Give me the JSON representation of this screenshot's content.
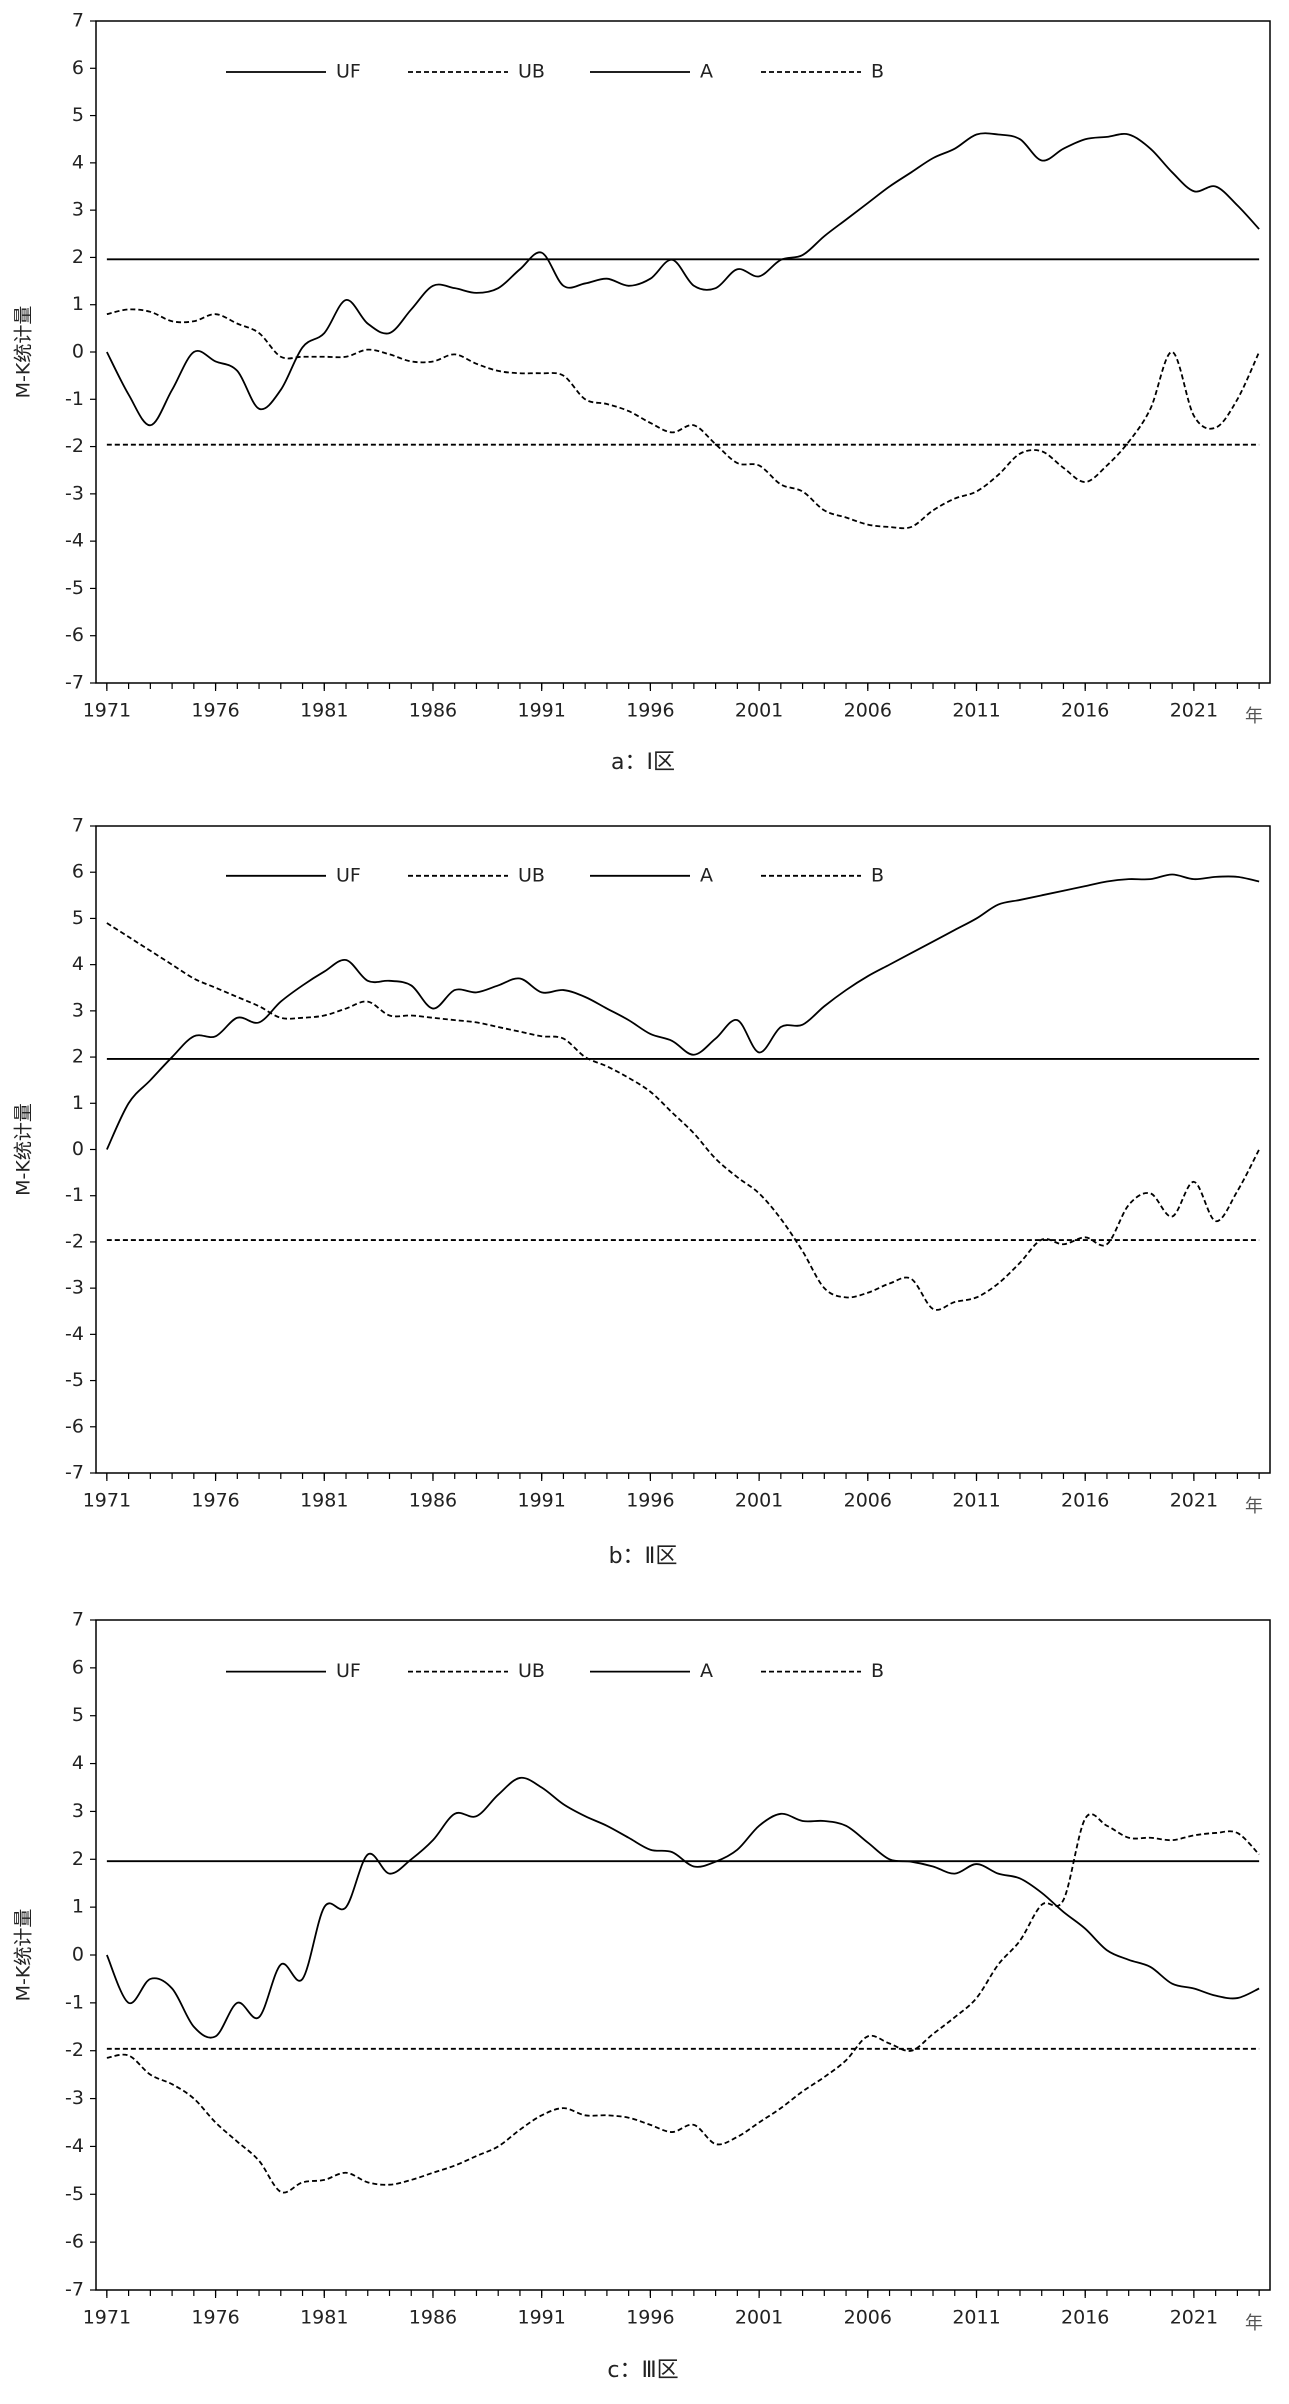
{
  "chart_data": [
    {
      "type": "line",
      "caption": "a：Ⅰ区",
      "y_label": "M-K统计量",
      "x_label": "年",
      "x": [
        1971,
        1972,
        1973,
        1974,
        1975,
        1976,
        1977,
        1978,
        1979,
        1980,
        1981,
        1982,
        1983,
        1984,
        1985,
        1986,
        1987,
        1988,
        1989,
        1990,
        1991,
        1992,
        1993,
        1994,
        1995,
        1996,
        1997,
        1998,
        1999,
        2000,
        2001,
        2002,
        2003,
        2004,
        2005,
        2006,
        2007,
        2008,
        2009,
        2010,
        2011,
        2012,
        2013,
        2014,
        2015,
        2016,
        2017,
        2018,
        2019,
        2020,
        2021,
        2022,
        2023,
        2024
      ],
      "xlim": [
        1970.5,
        2024.5
      ],
      "xticks": [
        1971,
        1976,
        1981,
        1986,
        1991,
        1996,
        2001,
        2006,
        2011,
        2016,
        2021
      ],
      "ylim": [
        -7,
        7
      ],
      "yticks": [
        -7,
        -6,
        -5,
        -4,
        -3,
        -2,
        -1,
        0,
        1,
        2,
        3,
        4,
        5,
        6,
        7
      ],
      "series": [
        {
          "name": "UF",
          "color": "#000000",
          "style": "solid",
          "values": [
            0,
            -0.9,
            -1.55,
            -0.8,
            0,
            -0.2,
            -0.4,
            -1.2,
            -0.8,
            0.1,
            0.4,
            1.1,
            0.6,
            0.4,
            0.9,
            1.4,
            1.35,
            1.25,
            1.35,
            1.75,
            2.1,
            1.4,
            1.45,
            1.55,
            1.4,
            1.55,
            1.95,
            1.4,
            1.35,
            1.75,
            1.6,
            1.95,
            2.05,
            2.45,
            2.8,
            3.15,
            3.5,
            3.8,
            4.1,
            4.3,
            4.6,
            4.6,
            4.5,
            4.05,
            4.3,
            4.5,
            4.55,
            4.6,
            4.3,
            3.8,
            3.4,
            3.5,
            3.1,
            2.6
          ]
        },
        {
          "name": "UB",
          "color": "#000000",
          "style": "dashed",
          "values": [
            0.8,
            0.9,
            0.85,
            0.65,
            0.65,
            0.8,
            0.6,
            0.4,
            -0.1,
            -0.1,
            -0.1,
            -0.1,
            0.05,
            -0.05,
            -0.2,
            -0.2,
            -0.05,
            -0.25,
            -0.4,
            -0.45,
            -0.45,
            -0.5,
            -1.0,
            -1.1,
            -1.25,
            -1.5,
            -1.7,
            -1.55,
            -1.95,
            -2.35,
            -2.4,
            -2.8,
            -2.95,
            -3.35,
            -3.5,
            -3.65,
            -3.7,
            -3.7,
            -3.35,
            -3.1,
            -2.95,
            -2.6,
            -2.15,
            -2.1,
            -2.45,
            -2.75,
            -2.4,
            -1.9,
            -1.2,
            0.0,
            -1.35,
            -1.6,
            -1.0,
            0.0
          ]
        },
        {
          "name": "A",
          "color": "#000000",
          "style": "solid",
          "values": [
            1.96,
            1.96,
            1.96,
            1.96,
            1.96,
            1.96,
            1.96,
            1.96,
            1.96,
            1.96,
            1.96,
            1.96,
            1.96,
            1.96,
            1.96,
            1.96,
            1.96,
            1.96,
            1.96,
            1.96,
            1.96,
            1.96,
            1.96,
            1.96,
            1.96,
            1.96,
            1.96,
            1.96,
            1.96,
            1.96,
            1.96,
            1.96,
            1.96,
            1.96,
            1.96,
            1.96,
            1.96,
            1.96,
            1.96,
            1.96,
            1.96,
            1.96,
            1.96,
            1.96,
            1.96,
            1.96,
            1.96,
            1.96,
            1.96,
            1.96,
            1.96,
            1.96,
            1.96,
            1.96
          ]
        },
        {
          "name": "B",
          "color": "#000000",
          "style": "dashed",
          "values": [
            -1.96,
            -1.96,
            -1.96,
            -1.96,
            -1.96,
            -1.96,
            -1.96,
            -1.96,
            -1.96,
            -1.96,
            -1.96,
            -1.96,
            -1.96,
            -1.96,
            -1.96,
            -1.96,
            -1.96,
            -1.96,
            -1.96,
            -1.96,
            -1.96,
            -1.96,
            -1.96,
            -1.96,
            -1.96,
            -1.96,
            -1.96,
            -1.96,
            -1.96,
            -1.96,
            -1.96,
            -1.96,
            -1.96,
            -1.96,
            -1.96,
            -1.96,
            -1.96,
            -1.96,
            -1.96,
            -1.96,
            -1.96,
            -1.96,
            -1.96,
            -1.96,
            -1.96,
            -1.96,
            -1.96,
            -1.96,
            -1.96,
            -1.96,
            -1.96,
            -1.96,
            -1.96,
            -1.96
          ]
        }
      ]
    },
    {
      "type": "line",
      "caption": "b：Ⅱ区",
      "y_label": "M-K统计量",
      "x_label": "年",
      "x": [
        1971,
        1972,
        1973,
        1974,
        1975,
        1976,
        1977,
        1978,
        1979,
        1980,
        1981,
        1982,
        1983,
        1984,
        1985,
        1986,
        1987,
        1988,
        1989,
        1990,
        1991,
        1992,
        1993,
        1994,
        1995,
        1996,
        1997,
        1998,
        1999,
        2000,
        2001,
        2002,
        2003,
        2004,
        2005,
        2006,
        2007,
        2008,
        2009,
        2010,
        2011,
        2012,
        2013,
        2014,
        2015,
        2016,
        2017,
        2018,
        2019,
        2020,
        2021,
        2022,
        2023,
        2024
      ],
      "xlim": [
        1970.5,
        2024.5
      ],
      "xticks": [
        1971,
        1976,
        1981,
        1986,
        1991,
        1996,
        2001,
        2006,
        2011,
        2016,
        2021
      ],
      "ylim": [
        -7,
        7
      ],
      "yticks": [
        -7,
        -6,
        -5,
        -4,
        -3,
        -2,
        -1,
        0,
        1,
        2,
        3,
        4,
        5,
        6,
        7
      ],
      "series": [
        {
          "name": "UF",
          "color": "#000000",
          "style": "solid",
          "values": [
            0,
            1.0,
            1.5,
            2.0,
            2.45,
            2.45,
            2.85,
            2.75,
            3.2,
            3.55,
            3.85,
            4.1,
            3.65,
            3.65,
            3.55,
            3.05,
            3.45,
            3.4,
            3.55,
            3.7,
            3.4,
            3.45,
            3.3,
            3.05,
            2.8,
            2.5,
            2.35,
            2.05,
            2.4,
            2.8,
            2.1,
            2.65,
            2.7,
            3.1,
            3.45,
            3.75,
            4.0,
            4.25,
            4.5,
            4.75,
            5.0,
            5.3,
            5.4,
            5.5,
            5.6,
            5.7,
            5.8,
            5.85,
            5.85,
            5.95,
            5.85,
            5.9,
            5.9,
            5.8
          ]
        },
        {
          "name": "UB",
          "color": "#000000",
          "style": "dashed",
          "values": [
            4.9,
            4.6,
            4.3,
            4.0,
            3.7,
            3.5,
            3.3,
            3.1,
            2.85,
            2.85,
            2.9,
            3.05,
            3.2,
            2.9,
            2.9,
            2.85,
            2.8,
            2.75,
            2.65,
            2.55,
            2.45,
            2.4,
            2.0,
            1.8,
            1.55,
            1.25,
            0.8,
            0.35,
            -0.2,
            -0.6,
            -0.95,
            -1.5,
            -2.2,
            -3.0,
            -3.2,
            -3.1,
            -2.9,
            -2.8,
            -3.45,
            -3.3,
            -3.2,
            -2.9,
            -2.45,
            -1.95,
            -2.05,
            -1.9,
            -2.05,
            -1.2,
            -0.95,
            -1.45,
            -0.7,
            -1.55,
            -0.9,
            0.0
          ]
        },
        {
          "name": "A",
          "color": "#000000",
          "style": "solid",
          "values": [
            1.96,
            1.96,
            1.96,
            1.96,
            1.96,
            1.96,
            1.96,
            1.96,
            1.96,
            1.96,
            1.96,
            1.96,
            1.96,
            1.96,
            1.96,
            1.96,
            1.96,
            1.96,
            1.96,
            1.96,
            1.96,
            1.96,
            1.96,
            1.96,
            1.96,
            1.96,
            1.96,
            1.96,
            1.96,
            1.96,
            1.96,
            1.96,
            1.96,
            1.96,
            1.96,
            1.96,
            1.96,
            1.96,
            1.96,
            1.96,
            1.96,
            1.96,
            1.96,
            1.96,
            1.96,
            1.96,
            1.96,
            1.96,
            1.96,
            1.96,
            1.96,
            1.96,
            1.96,
            1.96
          ]
        },
        {
          "name": "B",
          "color": "#000000",
          "style": "dashed",
          "values": [
            -1.96,
            -1.96,
            -1.96,
            -1.96,
            -1.96,
            -1.96,
            -1.96,
            -1.96,
            -1.96,
            -1.96,
            -1.96,
            -1.96,
            -1.96,
            -1.96,
            -1.96,
            -1.96,
            -1.96,
            -1.96,
            -1.96,
            -1.96,
            -1.96,
            -1.96,
            -1.96,
            -1.96,
            -1.96,
            -1.96,
            -1.96,
            -1.96,
            -1.96,
            -1.96,
            -1.96,
            -1.96,
            -1.96,
            -1.96,
            -1.96,
            -1.96,
            -1.96,
            -1.96,
            -1.96,
            -1.96,
            -1.96,
            -1.96,
            -1.96,
            -1.96,
            -1.96,
            -1.96,
            -1.96,
            -1.96,
            -1.96,
            -1.96,
            -1.96,
            -1.96,
            -1.96,
            -1.96
          ]
        }
      ]
    },
    {
      "type": "line",
      "caption": "c：Ⅲ区",
      "y_label": "M-K统计量",
      "x_label": "年",
      "x": [
        1971,
        1972,
        1973,
        1974,
        1975,
        1976,
        1977,
        1978,
        1979,
        1980,
        1981,
        1982,
        1983,
        1984,
        1985,
        1986,
        1987,
        1988,
        1989,
        1990,
        1991,
        1992,
        1993,
        1994,
        1995,
        1996,
        1997,
        1998,
        1999,
        2000,
        2001,
        2002,
        2003,
        2004,
        2005,
        2006,
        2007,
        2008,
        2009,
        2010,
        2011,
        2012,
        2013,
        2014,
        2015,
        2016,
        2017,
        2018,
        2019,
        2020,
        2021,
        2022,
        2023,
        2024
      ],
      "xlim": [
        1970.5,
        2024.5
      ],
      "xticks": [
        1971,
        1976,
        1981,
        1986,
        1991,
        1996,
        2001,
        2006,
        2011,
        2016,
        2021
      ],
      "ylim": [
        -7,
        7
      ],
      "yticks": [
        -7,
        -6,
        -5,
        -4,
        -3,
        -2,
        -1,
        0,
        1,
        2,
        3,
        4,
        5,
        6,
        7
      ],
      "series": [
        {
          "name": "UF",
          "color": "#000000",
          "style": "solid",
          "values": [
            0,
            -1.0,
            -0.5,
            -0.7,
            -1.5,
            -1.7,
            -1.0,
            -1.3,
            -0.2,
            -0.5,
            1.0,
            1.0,
            2.1,
            1.7,
            2.0,
            2.4,
            2.95,
            2.9,
            3.35,
            3.7,
            3.5,
            3.15,
            2.9,
            2.7,
            2.45,
            2.2,
            2.15,
            1.85,
            1.95,
            2.2,
            2.7,
            2.95,
            2.8,
            2.8,
            2.7,
            2.35,
            2.0,
            1.95,
            1.85,
            1.7,
            1.9,
            1.7,
            1.6,
            1.3,
            0.9,
            0.55,
            0.1,
            -0.1,
            -0.25,
            -0.6,
            -0.7,
            -0.85,
            -0.9,
            -0.7
          ]
        },
        {
          "name": "UB",
          "color": "#000000",
          "style": "dashed",
          "values": [
            -2.15,
            -2.1,
            -2.5,
            -2.7,
            -3.0,
            -3.5,
            -3.9,
            -4.3,
            -4.95,
            -4.75,
            -4.7,
            -4.55,
            -4.75,
            -4.8,
            -4.7,
            -4.55,
            -4.4,
            -4.2,
            -4.0,
            -3.65,
            -3.35,
            -3.2,
            -3.35,
            -3.35,
            -3.4,
            -3.55,
            -3.7,
            -3.55,
            -3.95,
            -3.8,
            -3.5,
            -3.2,
            -2.85,
            -2.55,
            -2.2,
            -1.7,
            -1.85,
            -2.0,
            -1.65,
            -1.3,
            -0.9,
            -0.2,
            0.3,
            1.05,
            1.15,
            2.85,
            2.7,
            2.45,
            2.45,
            2.4,
            2.5,
            2.55,
            2.55,
            2.1
          ]
        },
        {
          "name": "A",
          "color": "#000000",
          "style": "solid",
          "values": [
            1.96,
            1.96,
            1.96,
            1.96,
            1.96,
            1.96,
            1.96,
            1.96,
            1.96,
            1.96,
            1.96,
            1.96,
            1.96,
            1.96,
            1.96,
            1.96,
            1.96,
            1.96,
            1.96,
            1.96,
            1.96,
            1.96,
            1.96,
            1.96,
            1.96,
            1.96,
            1.96,
            1.96,
            1.96,
            1.96,
            1.96,
            1.96,
            1.96,
            1.96,
            1.96,
            1.96,
            1.96,
            1.96,
            1.96,
            1.96,
            1.96,
            1.96,
            1.96,
            1.96,
            1.96,
            1.96,
            1.96,
            1.96,
            1.96,
            1.96,
            1.96,
            1.96,
            1.96,
            1.96
          ]
        },
        {
          "name": "B",
          "color": "#000000",
          "style": "dashed",
          "values": [
            -1.96,
            -1.96,
            -1.96,
            -1.96,
            -1.96,
            -1.96,
            -1.96,
            -1.96,
            -1.96,
            -1.96,
            -1.96,
            -1.96,
            -1.96,
            -1.96,
            -1.96,
            -1.96,
            -1.96,
            -1.96,
            -1.96,
            -1.96,
            -1.96,
            -1.96,
            -1.96,
            -1.96,
            -1.96,
            -1.96,
            -1.96,
            -1.96,
            -1.96,
            -1.96,
            -1.96,
            -1.96,
            -1.96,
            -1.96,
            -1.96,
            -1.96,
            -1.96,
            -1.96,
            -1.96,
            -1.96,
            -1.96,
            -1.96,
            -1.96,
            -1.96,
            -1.96,
            -1.96,
            -1.96,
            -1.96,
            -1.96,
            -1.96,
            -1.96,
            -1.96,
            -1.96,
            -1.96
          ]
        }
      ]
    }
  ]
}
